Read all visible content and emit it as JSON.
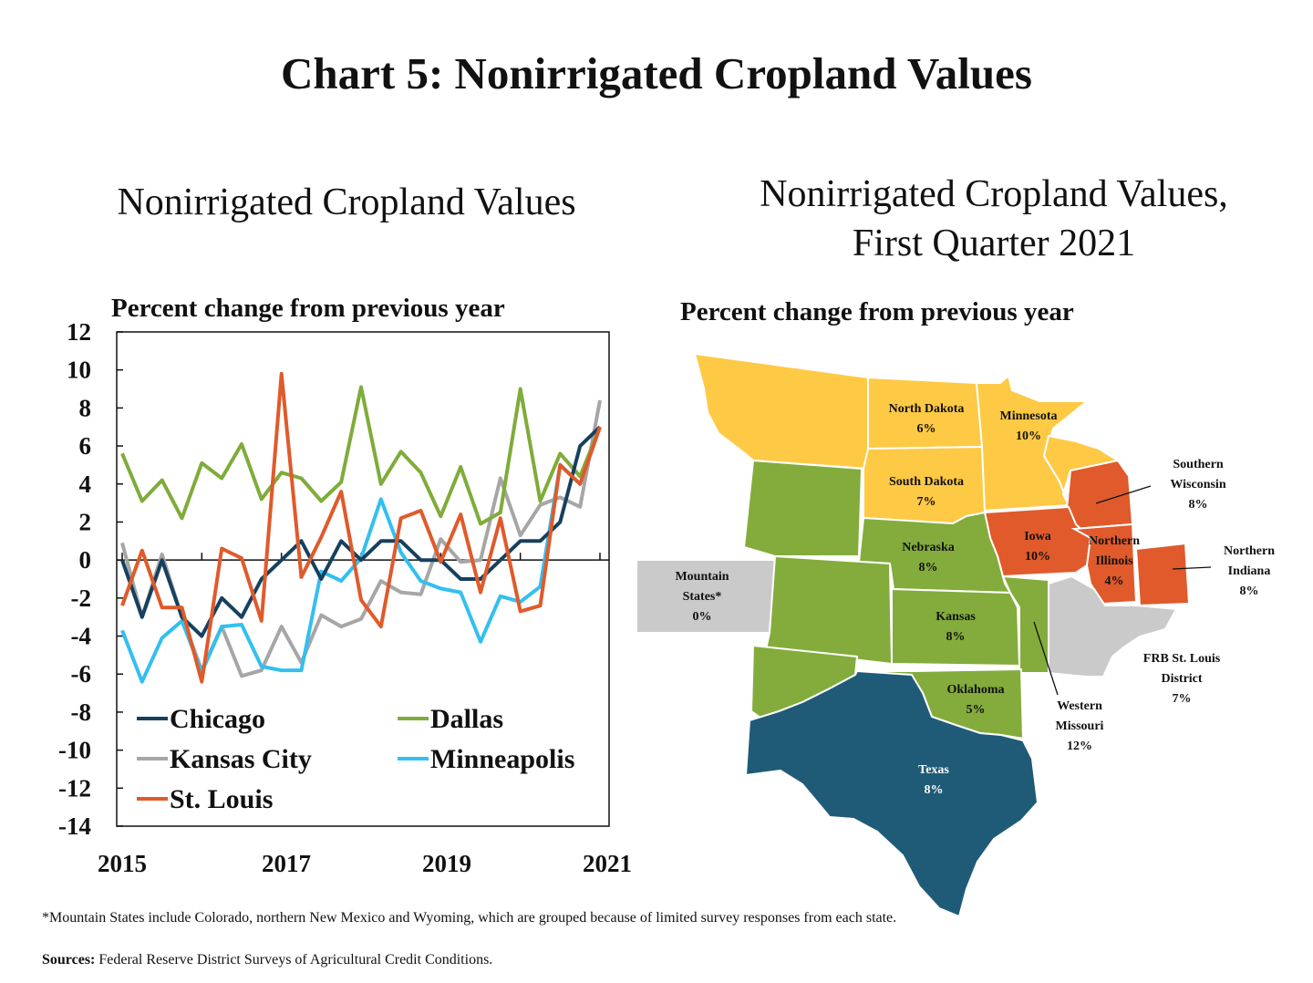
{
  "title": "Chart 5: Nonirrigated Cropland Values",
  "colors": {
    "chicago": "#17405f",
    "dallas": "#7fac3a",
    "kansas_city": "#a6a6a6",
    "minneapolis": "#33bff0",
    "st_louis": "#e05a2b",
    "map_yellow": "#fec944",
    "map_green": "#83ac3c",
    "map_orange": "#e05a2b",
    "map_teal": "#1f5b77",
    "map_gray": "#cacaca"
  },
  "chart_data": [
    {
      "type": "line",
      "title": "Nonirrigated Cropland Values",
      "subtitle": "Percent change from previous year",
      "xlabel": "",
      "ylabel": "",
      "ylim": [
        -14,
        12
      ],
      "yticks": [
        "12",
        "10",
        "8",
        "6",
        "4",
        "2",
        "0",
        "-2",
        "-4",
        "-6",
        "-8",
        "-10",
        "-12",
        "-14"
      ],
      "xticks": [
        "2015",
        "2017",
        "2019",
        "2021"
      ],
      "x": [
        "2015Q1",
        "2015Q2",
        "2015Q3",
        "2015Q4",
        "2016Q1",
        "2016Q2",
        "2016Q3",
        "2016Q4",
        "2017Q1",
        "2017Q2",
        "2017Q3",
        "2017Q4",
        "2018Q1",
        "2018Q2",
        "2018Q3",
        "2018Q4",
        "2019Q1",
        "2019Q2",
        "2019Q3",
        "2019Q4",
        "2020Q1",
        "2020Q2",
        "2020Q3",
        "2020Q4",
        "2021Q1"
      ],
      "legend_position": "bottom",
      "series": [
        {
          "name": "Chicago",
          "values": [
            0,
            -3,
            0,
            -3,
            -4,
            -2,
            -3,
            -1,
            0,
            1,
            -1,
            1,
            0,
            1,
            1,
            0,
            0,
            -1,
            -1,
            0,
            1,
            1,
            2,
            6,
            7
          ]
        },
        {
          "name": "Dallas",
          "values": [
            5.6,
            3.1,
            4.2,
            2.2,
            5.1,
            4.3,
            6.1,
            3.2,
            4.6,
            4.3,
            3.1,
            4.1,
            9.1,
            4.0,
            5.7,
            4.6,
            2.3,
            4.9,
            1.9,
            2.5,
            9.0,
            3.1,
            5.6,
            4.4,
            7.0
          ]
        },
        {
          "name": "Kansas City",
          "values": [
            0.9,
            -3.0,
            0.3,
            -3.0,
            -5.8,
            -3.5,
            -6.1,
            -5.8,
            -3.5,
            -5.4,
            -2.9,
            -3.5,
            -3.1,
            -1.1,
            -1.7,
            -1.8,
            1.1,
            -0.1,
            0.0,
            4.3,
            1.3,
            2.9,
            3.3,
            2.8,
            8.4
          ]
        },
        {
          "name": "Minneapolis",
          "values": [
            -3.7,
            -6.4,
            -4.1,
            -3.2,
            -5.9,
            -3.5,
            -3.4,
            -5.6,
            -5.8,
            -5.8,
            -0.6,
            -1.1,
            0.1,
            3.2,
            0.4,
            -1.1,
            -1.5,
            -1.7,
            -4.3,
            -1.9,
            -2.2,
            -1.4,
            5.0,
            4.0,
            7.0
          ]
        },
        {
          "name": "St. Louis",
          "values": [
            -2.4,
            0.5,
            -2.5,
            -2.5,
            -6.4,
            0.6,
            0.1,
            -3.2,
            9.8,
            -0.9,
            1.2,
            3.6,
            -2.1,
            -3.5,
            2.2,
            2.6,
            -0.1,
            2.4,
            -1.7,
            2.2,
            -2.7,
            -2.4,
            5.0,
            4.0,
            7.0
          ]
        }
      ]
    },
    {
      "type": "map",
      "title": "Nonirrigated Cropland Values, First Quarter 2021",
      "subtitle": "Percent change from previous year",
      "regions": [
        {
          "name": "North Dakota",
          "value": "6%"
        },
        {
          "name": "Minnesota",
          "value": "10%"
        },
        {
          "name": "South Dakota",
          "value": "7%"
        },
        {
          "name": "Southern Wisconsin",
          "value": "8%"
        },
        {
          "name": "Nebraska",
          "value": "8%"
        },
        {
          "name": "Iowa",
          "value": "10%"
        },
        {
          "name": "Northern Illinois",
          "value": "4%"
        },
        {
          "name": "Northern Indiana",
          "value": "8%"
        },
        {
          "name": "Mountain States*",
          "value": "0%"
        },
        {
          "name": "Kansas",
          "value": "8%"
        },
        {
          "name": "FRB St. Louis District",
          "value": "7%"
        },
        {
          "name": "Oklahoma",
          "value": "5%"
        },
        {
          "name": "Western Missouri",
          "value": "12%"
        },
        {
          "name": "Texas",
          "value": "8%"
        }
      ]
    }
  ],
  "map_labels": {
    "nd": [
      "North Dakota",
      "6%"
    ],
    "mn": [
      "Minnesota",
      "10%"
    ],
    "sd": [
      "South Dakota",
      "7%"
    ],
    "wi": [
      "Southern",
      "Wisconsin",
      "8%"
    ],
    "ne": [
      "Nebraska",
      "8%"
    ],
    "ia": [
      "Iowa",
      "10%"
    ],
    "il": [
      "Northern",
      "Illinois",
      "4%"
    ],
    "in": [
      "Northern",
      "Indiana",
      "8%"
    ],
    "mt": [
      "Mountain",
      "States*",
      "0%"
    ],
    "ks": [
      "Kansas",
      "8%"
    ],
    "stl": [
      "FRB St. Louis",
      "District",
      "7%"
    ],
    "ok": [
      "Oklahoma",
      "5%"
    ],
    "mo": [
      "Western",
      "Missouri",
      "12%"
    ],
    "tx": [
      "Texas",
      "8%"
    ]
  },
  "footnote": "*Mountain States include Colorado, northern New Mexico and Wyoming, which are grouped because of limited survey responses from each state.",
  "sources_label": "Sources:",
  "sources_text": " Federal Reserve District Surveys of Agricultural Credit Conditions."
}
